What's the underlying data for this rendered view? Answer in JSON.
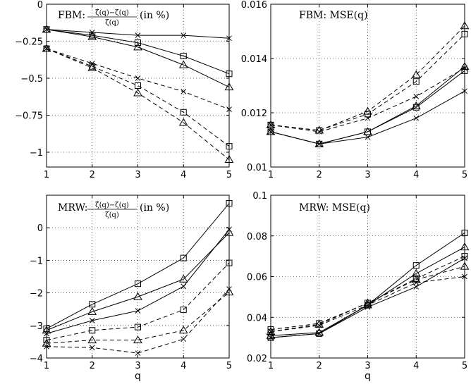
{
  "chart_data": [
    {
      "type": "line",
      "title": "",
      "annotation": {
        "prefix": "FBM:",
        "numerator": "ζ̂(q)−ζ(q)",
        "denominator": "ζ(q)",
        "suffix": "(in %)"
      },
      "xlabel": "",
      "ylabel": "",
      "x": [
        1,
        2,
        3,
        4,
        5
      ],
      "xlim": [
        1,
        5
      ],
      "ylim": [
        -1.1,
        0
      ],
      "xticks": [
        "1",
        "2",
        "3",
        "4",
        "5"
      ],
      "yticks": [
        0,
        -0.25,
        -0.5,
        -0.75,
        -1
      ],
      "ytick_labels": [
        "0",
        "−0.25",
        "−0.5",
        "−0.75",
        "−1"
      ],
      "grid": true,
      "series": [
        {
          "marker": "x",
          "style": "solid",
          "values": [
            -0.17,
            -0.19,
            -0.21,
            -0.21,
            -0.23
          ]
        },
        {
          "marker": "square",
          "style": "solid",
          "values": [
            -0.17,
            -0.21,
            -0.26,
            -0.35,
            -0.47
          ]
        },
        {
          "marker": "triangle",
          "style": "solid",
          "values": [
            -0.17,
            -0.22,
            -0.29,
            -0.41,
            -0.56
          ]
        },
        {
          "marker": "x",
          "style": "dashed",
          "values": [
            -0.3,
            -0.4,
            -0.5,
            -0.59,
            -0.71
          ]
        },
        {
          "marker": "square",
          "style": "dashed",
          "values": [
            -0.3,
            -0.42,
            -0.55,
            -0.73,
            -0.96
          ]
        },
        {
          "marker": "triangle",
          "style": "dashed",
          "values": [
            -0.3,
            -0.43,
            -0.6,
            -0.8,
            -1.05
          ]
        }
      ]
    },
    {
      "type": "line",
      "title": "",
      "annotation": {
        "text": "FBM: MSE(q)"
      },
      "xlabel": "",
      "ylabel": "",
      "x": [
        1,
        2,
        3,
        4,
        5
      ],
      "xlim": [
        1,
        5
      ],
      "ylim": [
        0.01,
        0.016
      ],
      "xticks": [
        "1",
        "2",
        "3",
        "4",
        "5"
      ],
      "yticks": [
        0.01,
        0.012,
        0.014,
        0.016
      ],
      "ytick_labels": [
        "0.01",
        "0.012",
        "0.014",
        "0.016"
      ],
      "grid": true,
      "series": [
        {
          "marker": "x",
          "style": "solid",
          "values": [
            0.0113,
            0.01085,
            0.0111,
            0.0118,
            0.0128
          ]
        },
        {
          "marker": "square",
          "style": "solid",
          "values": [
            0.0113,
            0.01085,
            0.0113,
            0.0122,
            0.01355
          ]
        },
        {
          "marker": "triangle",
          "style": "solid",
          "values": [
            0.0113,
            0.01085,
            0.0113,
            0.01225,
            0.0137
          ]
        },
        {
          "marker": "x",
          "style": "dashed",
          "values": [
            0.01155,
            0.0113,
            0.0118,
            0.0126,
            0.01365
          ]
        },
        {
          "marker": "square",
          "style": "dashed",
          "values": [
            0.01155,
            0.01135,
            0.01195,
            0.01315,
            0.0149
          ]
        },
        {
          "marker": "triangle",
          "style": "dashed",
          "values": [
            0.01155,
            0.01135,
            0.01205,
            0.0134,
            0.0152
          ]
        }
      ]
    },
    {
      "type": "line",
      "title": "",
      "annotation": {
        "prefix": "MRW:",
        "numerator": "ζ̂(q)−ζ(q)",
        "denominator": "ζ(q)",
        "suffix": "(in %)"
      },
      "xlabel": "q",
      "ylabel": "",
      "x": [
        1,
        2,
        3,
        4,
        5
      ],
      "xlim": [
        1,
        5
      ],
      "ylim": [
        -4,
        1
      ],
      "xticks": [
        "1",
        "2",
        "3",
        "4",
        "5"
      ],
      "yticks": [
        0,
        -1,
        -2,
        -3,
        -4
      ],
      "ytick_labels": [
        "0",
        "−1",
        "−2",
        "−3",
        "−4"
      ],
      "grid": true,
      "series": [
        {
          "marker": "x",
          "style": "solid",
          "values": [
            -3.25,
            -2.85,
            -2.55,
            -1.8,
            -0.05
          ]
        },
        {
          "marker": "square",
          "style": "solid",
          "values": [
            -3.1,
            -2.35,
            -1.72,
            -0.93,
            0.75
          ]
        },
        {
          "marker": "triangle",
          "style": "solid",
          "values": [
            -3.15,
            -2.58,
            -2.12,
            -1.58,
            -0.15
          ]
        },
        {
          "marker": "x",
          "style": "dashed",
          "values": [
            -3.65,
            -3.68,
            -3.85,
            -3.42,
            -1.88
          ]
        },
        {
          "marker": "square",
          "style": "dashed",
          "values": [
            -3.45,
            -3.15,
            -3.05,
            -2.52,
            -1.08
          ]
        },
        {
          "marker": "triangle",
          "style": "dashed",
          "values": [
            -3.55,
            -3.45,
            -3.45,
            -3.15,
            -1.98
          ]
        }
      ]
    },
    {
      "type": "line",
      "title": "",
      "annotation": {
        "text": "MRW: MSE(q)"
      },
      "xlabel": "q",
      "ylabel": "",
      "x": [
        1,
        2,
        3,
        4,
        5
      ],
      "xlim": [
        1,
        5
      ],
      "ylim": [
        0.02,
        0.1
      ],
      "xticks": [
        "1",
        "2",
        "3",
        "4",
        "5"
      ],
      "yticks": [
        0.02,
        0.04,
        0.06,
        0.08,
        0.1
      ],
      "ytick_labels": [
        "0.02",
        "0.04",
        "0.06",
        "0.08",
        "0.1"
      ],
      "grid": true,
      "series": [
        {
          "marker": "x",
          "style": "solid",
          "values": [
            0.03,
            0.032,
            0.045,
            0.055,
            0.069
          ]
        },
        {
          "marker": "square",
          "style": "solid",
          "values": [
            0.03,
            0.032,
            0.046,
            0.0655,
            0.0815
          ]
        },
        {
          "marker": "triangle",
          "style": "solid",
          "values": [
            0.031,
            0.0325,
            0.046,
            0.0615,
            0.0745
          ]
        },
        {
          "marker": "x",
          "style": "dashed",
          "values": [
            0.033,
            0.036,
            0.046,
            0.057,
            0.06
          ]
        },
        {
          "marker": "square",
          "style": "dashed",
          "values": [
            0.034,
            0.037,
            0.047,
            0.059,
            0.07
          ]
        },
        {
          "marker": "triangle",
          "style": "dashed",
          "values": [
            0.033,
            0.0365,
            0.047,
            0.0585,
            0.065
          ]
        }
      ]
    }
  ]
}
